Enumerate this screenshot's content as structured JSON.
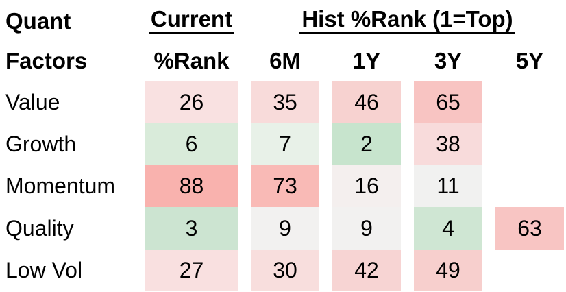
{
  "table": {
    "corner_line1": "Quant",
    "corner_line2": "Factors",
    "group_current": "Current",
    "group_hist": "Hist %Rank (1=Top)",
    "col_headers": [
      "%Rank",
      "6M",
      "1Y",
      "3Y",
      "5Y"
    ],
    "rows": [
      {
        "label": "Value",
        "cells": [
          {
            "value": "26",
            "color": "#f9e1e1"
          },
          {
            "value": "35",
            "color": "#f8dbda"
          },
          {
            "value": "46",
            "color": "#f7d2d0"
          },
          {
            "value": "65",
            "color": "#f8c4c2"
          },
          {
            "value": "",
            "color": ""
          }
        ]
      },
      {
        "label": "Growth",
        "cells": [
          {
            "value": "6",
            "color": "#d9ebda"
          },
          {
            "value": "7",
            "color": "#e8f1e8"
          },
          {
            "value": "2",
            "color": "#c7e4cd"
          },
          {
            "value": "38",
            "color": "#f8dbdb"
          },
          {
            "value": "",
            "color": ""
          }
        ]
      },
      {
        "label": "Momentum",
        "cells": [
          {
            "value": "88",
            "color": "#f9b2ae"
          },
          {
            "value": "73",
            "color": "#f9bab6"
          },
          {
            "value": "16",
            "color": "#f4efee"
          },
          {
            "value": "11",
            "color": "#f1f1f0"
          },
          {
            "value": "",
            "color": ""
          }
        ]
      },
      {
        "label": "Quality",
        "cells": [
          {
            "value": "3",
            "color": "#cce4d1"
          },
          {
            "value": "9",
            "color": "#f2f1f0"
          },
          {
            "value": "9",
            "color": "#f2f1f0"
          },
          {
            "value": "4",
            "color": "#cfe6d3"
          },
          {
            "value": "63",
            "color": "#f8c5c3"
          }
        ]
      },
      {
        "label": "Low Vol",
        "cells": [
          {
            "value": "27",
            "color": "#f9e0e0"
          },
          {
            "value": "30",
            "color": "#f8dedd"
          },
          {
            "value": "42",
            "color": "#f7d4d3"
          },
          {
            "value": "49",
            "color": "#f7cfcd"
          },
          {
            "value": "",
            "color": ""
          }
        ]
      }
    ]
  },
  "chart_data": {
    "type": "heatmap",
    "title": "Quant Factors",
    "corner_label": "Quant Factors",
    "column_groups": [
      {
        "label": "Current",
        "columns": [
          "%Rank"
        ]
      },
      {
        "label": "Hist %Rank (1=Top)",
        "columns": [
          "6M",
          "1Y",
          "3Y",
          "5Y"
        ]
      }
    ],
    "columns": [
      "%Rank",
      "6M",
      "1Y",
      "3Y",
      "5Y"
    ],
    "rows": [
      "Value",
      "Growth",
      "Momentum",
      "Quality",
      "Low Vol"
    ],
    "values": [
      [
        26,
        35,
        46,
        65,
        null
      ],
      [
        6,
        7,
        2,
        38,
        null
      ],
      [
        88,
        73,
        16,
        11,
        null
      ],
      [
        3,
        9,
        9,
        4,
        63
      ],
      [
        27,
        30,
        42,
        49,
        null
      ]
    ],
    "scale_note": "1=Top",
    "legend_position": "none",
    "grid": false,
    "color_rule": "low rank = green (good), mid = neutral gray, high rank = red"
  },
  "colors": {
    "text": "#000000",
    "background": "#ffffff",
    "underline": "#000000",
    "good_green": "#c7e4cd",
    "bad_red": "#f9b2ae",
    "neutral_gray": "#f1f1f0"
  }
}
